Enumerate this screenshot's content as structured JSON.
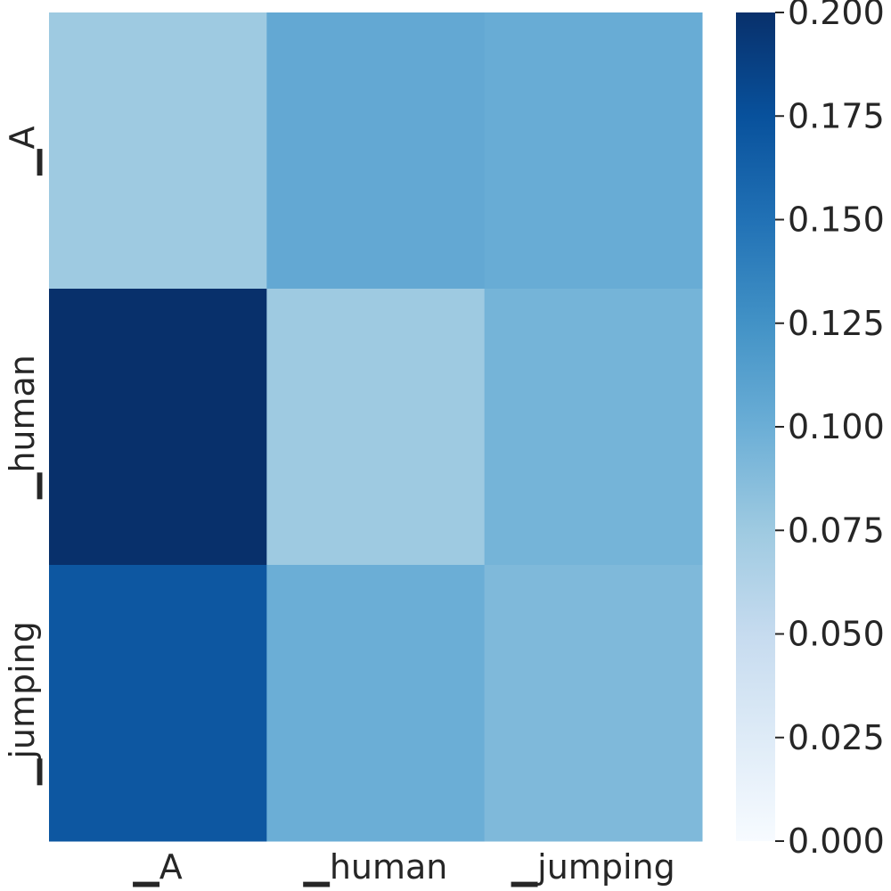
{
  "chart_data": {
    "type": "heatmap",
    "title": "",
    "xlabel": "",
    "ylabel": "",
    "x_categories": [
      "▁A",
      "▁human",
      "▁jumping"
    ],
    "y_categories": [
      "▁A",
      "▁human",
      "▁jumping"
    ],
    "values": [
      [
        0.075,
        0.105,
        0.102
      ],
      [
        0.2,
        0.075,
        0.095
      ],
      [
        0.17,
        0.1,
        0.09
      ]
    ],
    "colorbar": {
      "min": 0.0,
      "max": 0.2,
      "ticks": [
        "0.000",
        "0.025",
        "0.050",
        "0.075",
        "0.100",
        "0.125",
        "0.150",
        "0.175",
        "0.200"
      ],
      "colormap": "Blues",
      "colors": [
        "#f7fbff",
        "#deebf7",
        "#c6dbef",
        "#9ecae1",
        "#6baed6",
        "#4292c6",
        "#2171b5",
        "#08519c",
        "#08306b"
      ]
    },
    "grid": false,
    "legend": "colorbar-right"
  }
}
